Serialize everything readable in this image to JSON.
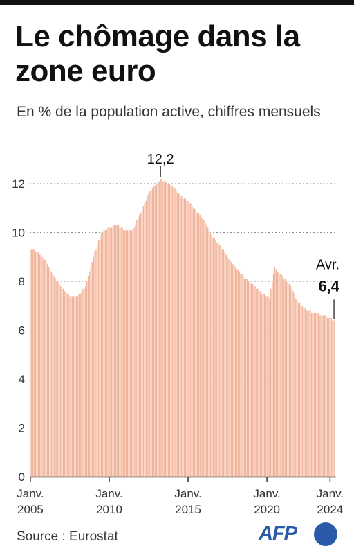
{
  "header": {
    "title": "Le chômage dans la zone euro",
    "subtitle": "En % de la population active, chiffres mensuels"
  },
  "footer": {
    "source": "Source : Eurostat",
    "logo_text": "AFP"
  },
  "colors": {
    "bar": "#f2b49b",
    "bar_edge": "#ffffff",
    "grid": "#8a8a8a",
    "axis": "#333333",
    "logo": "#2a5aa8"
  },
  "chart_data": {
    "type": "bar",
    "title": "Le chômage dans la zone euro",
    "ylabel": "En % de la population active",
    "ylim": [
      0,
      12.5
    ],
    "yticks": [
      0,
      2,
      4,
      6,
      8,
      10,
      12
    ],
    "grid": "horizontal-dotted",
    "x_tick_labels": [
      {
        "line1": "Janv.",
        "line2": "2005",
        "index": 0
      },
      {
        "line1": "Janv.",
        "line2": "2010",
        "index": 60
      },
      {
        "line1": "Janv.",
        "line2": "2015",
        "index": 120
      },
      {
        "line1": "Janv.",
        "line2": "2020",
        "index": 180
      },
      {
        "line1": "Janv.",
        "line2": "2024",
        "index": 228
      }
    ],
    "x_range": "Janv. 2005 – Avr. 2024 (monthly)",
    "anchors": [
      [
        0,
        9.3
      ],
      [
        6,
        9.2
      ],
      [
        12,
        8.8
      ],
      [
        18,
        8.2
      ],
      [
        24,
        7.7
      ],
      [
        30,
        7.4
      ],
      [
        36,
        7.4
      ],
      [
        42,
        7.8
      ],
      [
        48,
        9.0
      ],
      [
        54,
        10.0
      ],
      [
        60,
        10.2
      ],
      [
        66,
        10.3
      ],
      [
        72,
        10.1
      ],
      [
        78,
        10.1
      ],
      [
        84,
        10.8
      ],
      [
        90,
        11.6
      ],
      [
        96,
        12.0
      ],
      [
        99,
        12.2
      ],
      [
        108,
        11.9
      ],
      [
        114,
        11.5
      ],
      [
        120,
        11.3
      ],
      [
        126,
        10.9
      ],
      [
        132,
        10.5
      ],
      [
        138,
        9.9
      ],
      [
        144,
        9.5
      ],
      [
        150,
        9.0
      ],
      [
        156,
        8.6
      ],
      [
        162,
        8.2
      ],
      [
        168,
        7.9
      ],
      [
        174,
        7.6
      ],
      [
        180,
        7.4
      ],
      [
        182,
        7.3
      ],
      [
        184,
        8.0
      ],
      [
        186,
        8.6
      ],
      [
        188,
        8.4
      ],
      [
        192,
        8.2
      ],
      [
        198,
        7.8
      ],
      [
        204,
        7.1
      ],
      [
        210,
        6.8
      ],
      [
        216,
        6.7
      ],
      [
        222,
        6.6
      ],
      [
        228,
        6.5
      ],
      [
        231,
        6.4
      ]
    ],
    "peak": {
      "label": "12,2",
      "value": 12.2
    },
    "last": {
      "label_month": "Avr.",
      "label_value": "6,4",
      "value": 6.4
    }
  }
}
